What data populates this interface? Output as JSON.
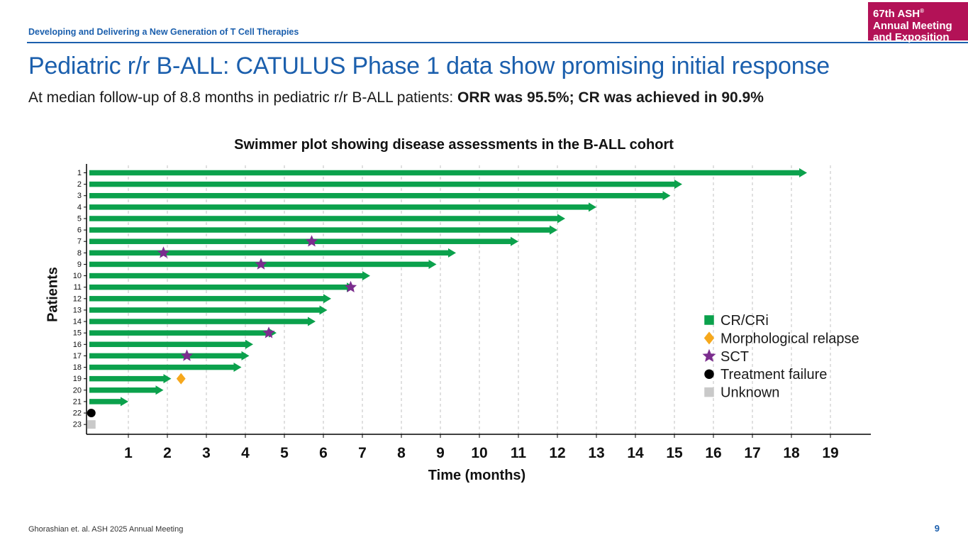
{
  "header": {
    "eyebrow": "Developing and Delivering a New Generation of T Cell Therapies",
    "logo": {
      "line1": "67th ASH",
      "sup": "®",
      "line2": "Annual Meeting",
      "line3": "and Exposition"
    }
  },
  "title": "Pediatric r/r B-ALL: CATULUS Phase 1 data show promising initial response",
  "subtitle": {
    "normal": "At median follow-up of 8.8 months in pediatric r/r B-ALL patients: ",
    "bold": "ORR was 95.5%; CR was achieved in 90.9%"
  },
  "footer": {
    "citation": "Ghorashian et. al. ASH 2025 Annual Meeting",
    "page": "9"
  },
  "colors": {
    "green": "#0ba14c",
    "purple": "#7b2d8e",
    "orange": "#f6a81c",
    "black": "#000000",
    "gray": "#c9c9c9",
    "blue": "#1b5fad",
    "crimson": "#b31257",
    "grid": "#c0c0c0",
    "text": "#1a1a1a"
  },
  "chart_data": {
    "type": "swimmer",
    "title": "Swimmer plot showing disease assessments in the B-ALL cohort",
    "xlabel": "Time (months)",
    "ylabel": "Patients",
    "xlim": [
      0,
      20
    ],
    "x_ticks": [
      1,
      2,
      3,
      4,
      5,
      6,
      7,
      8,
      9,
      10,
      11,
      12,
      13,
      14,
      15,
      16,
      17,
      18,
      19
    ],
    "grid": "vertical-dashed",
    "patients": [
      {
        "id": 1,
        "duration": 18.4,
        "markers": []
      },
      {
        "id": 2,
        "duration": 15.2,
        "markers": []
      },
      {
        "id": 3,
        "duration": 14.9,
        "markers": []
      },
      {
        "id": 4,
        "duration": 13.0,
        "markers": []
      },
      {
        "id": 5,
        "duration": 12.2,
        "markers": []
      },
      {
        "id": 6,
        "duration": 12.0,
        "markers": []
      },
      {
        "id": 7,
        "duration": 11.0,
        "markers": [
          {
            "type": "sct",
            "time": 5.7
          }
        ]
      },
      {
        "id": 8,
        "duration": 9.4,
        "markers": [
          {
            "type": "sct",
            "time": 1.9
          }
        ]
      },
      {
        "id": 9,
        "duration": 8.9,
        "markers": [
          {
            "type": "sct",
            "time": 4.4
          }
        ]
      },
      {
        "id": 10,
        "duration": 7.2,
        "markers": []
      },
      {
        "id": 11,
        "duration": 6.8,
        "markers": [
          {
            "type": "sct",
            "time": 6.7
          }
        ]
      },
      {
        "id": 12,
        "duration": 6.2,
        "markers": []
      },
      {
        "id": 13,
        "duration": 6.1,
        "markers": []
      },
      {
        "id": 14,
        "duration": 5.8,
        "markers": []
      },
      {
        "id": 15,
        "duration": 4.8,
        "markers": [
          {
            "type": "sct",
            "time": 4.6
          }
        ]
      },
      {
        "id": 16,
        "duration": 4.2,
        "markers": []
      },
      {
        "id": 17,
        "duration": 4.1,
        "markers": [
          {
            "type": "sct",
            "time": 2.5
          }
        ]
      },
      {
        "id": 18,
        "duration": 3.9,
        "markers": []
      },
      {
        "id": 19,
        "duration": 2.1,
        "markers": [
          {
            "type": "relapse",
            "time": 2.35
          }
        ]
      },
      {
        "id": 20,
        "duration": 1.9,
        "markers": []
      },
      {
        "id": 21,
        "duration": 1.0,
        "markers": []
      },
      {
        "id": 22,
        "duration": 0,
        "markers": [
          {
            "type": "treatment_failure",
            "time": 0.05
          }
        ]
      },
      {
        "id": 23,
        "duration": 0,
        "markers": [
          {
            "type": "unknown",
            "time": 0.05
          }
        ]
      }
    ],
    "marker_styles": {
      "sct": {
        "shape": "star",
        "color_key": "purple"
      },
      "relapse": {
        "shape": "diamond",
        "color_key": "orange"
      },
      "treatment_failure": {
        "shape": "circle",
        "color_key": "black"
      },
      "unknown": {
        "shape": "square",
        "color_key": "gray"
      }
    },
    "legend": [
      {
        "label": "CR/CRi",
        "shape": "square",
        "color_key": "green"
      },
      {
        "label": "Morphological relapse",
        "shape": "diamond",
        "color_key": "orange"
      },
      {
        "label": "SCT",
        "shape": "star",
        "color_key": "purple"
      },
      {
        "label": "Treatment failure",
        "shape": "circle",
        "color_key": "black"
      },
      {
        "label": "Unknown",
        "shape": "square",
        "color_key": "gray"
      }
    ],
    "legend_position": "inside-right"
  }
}
